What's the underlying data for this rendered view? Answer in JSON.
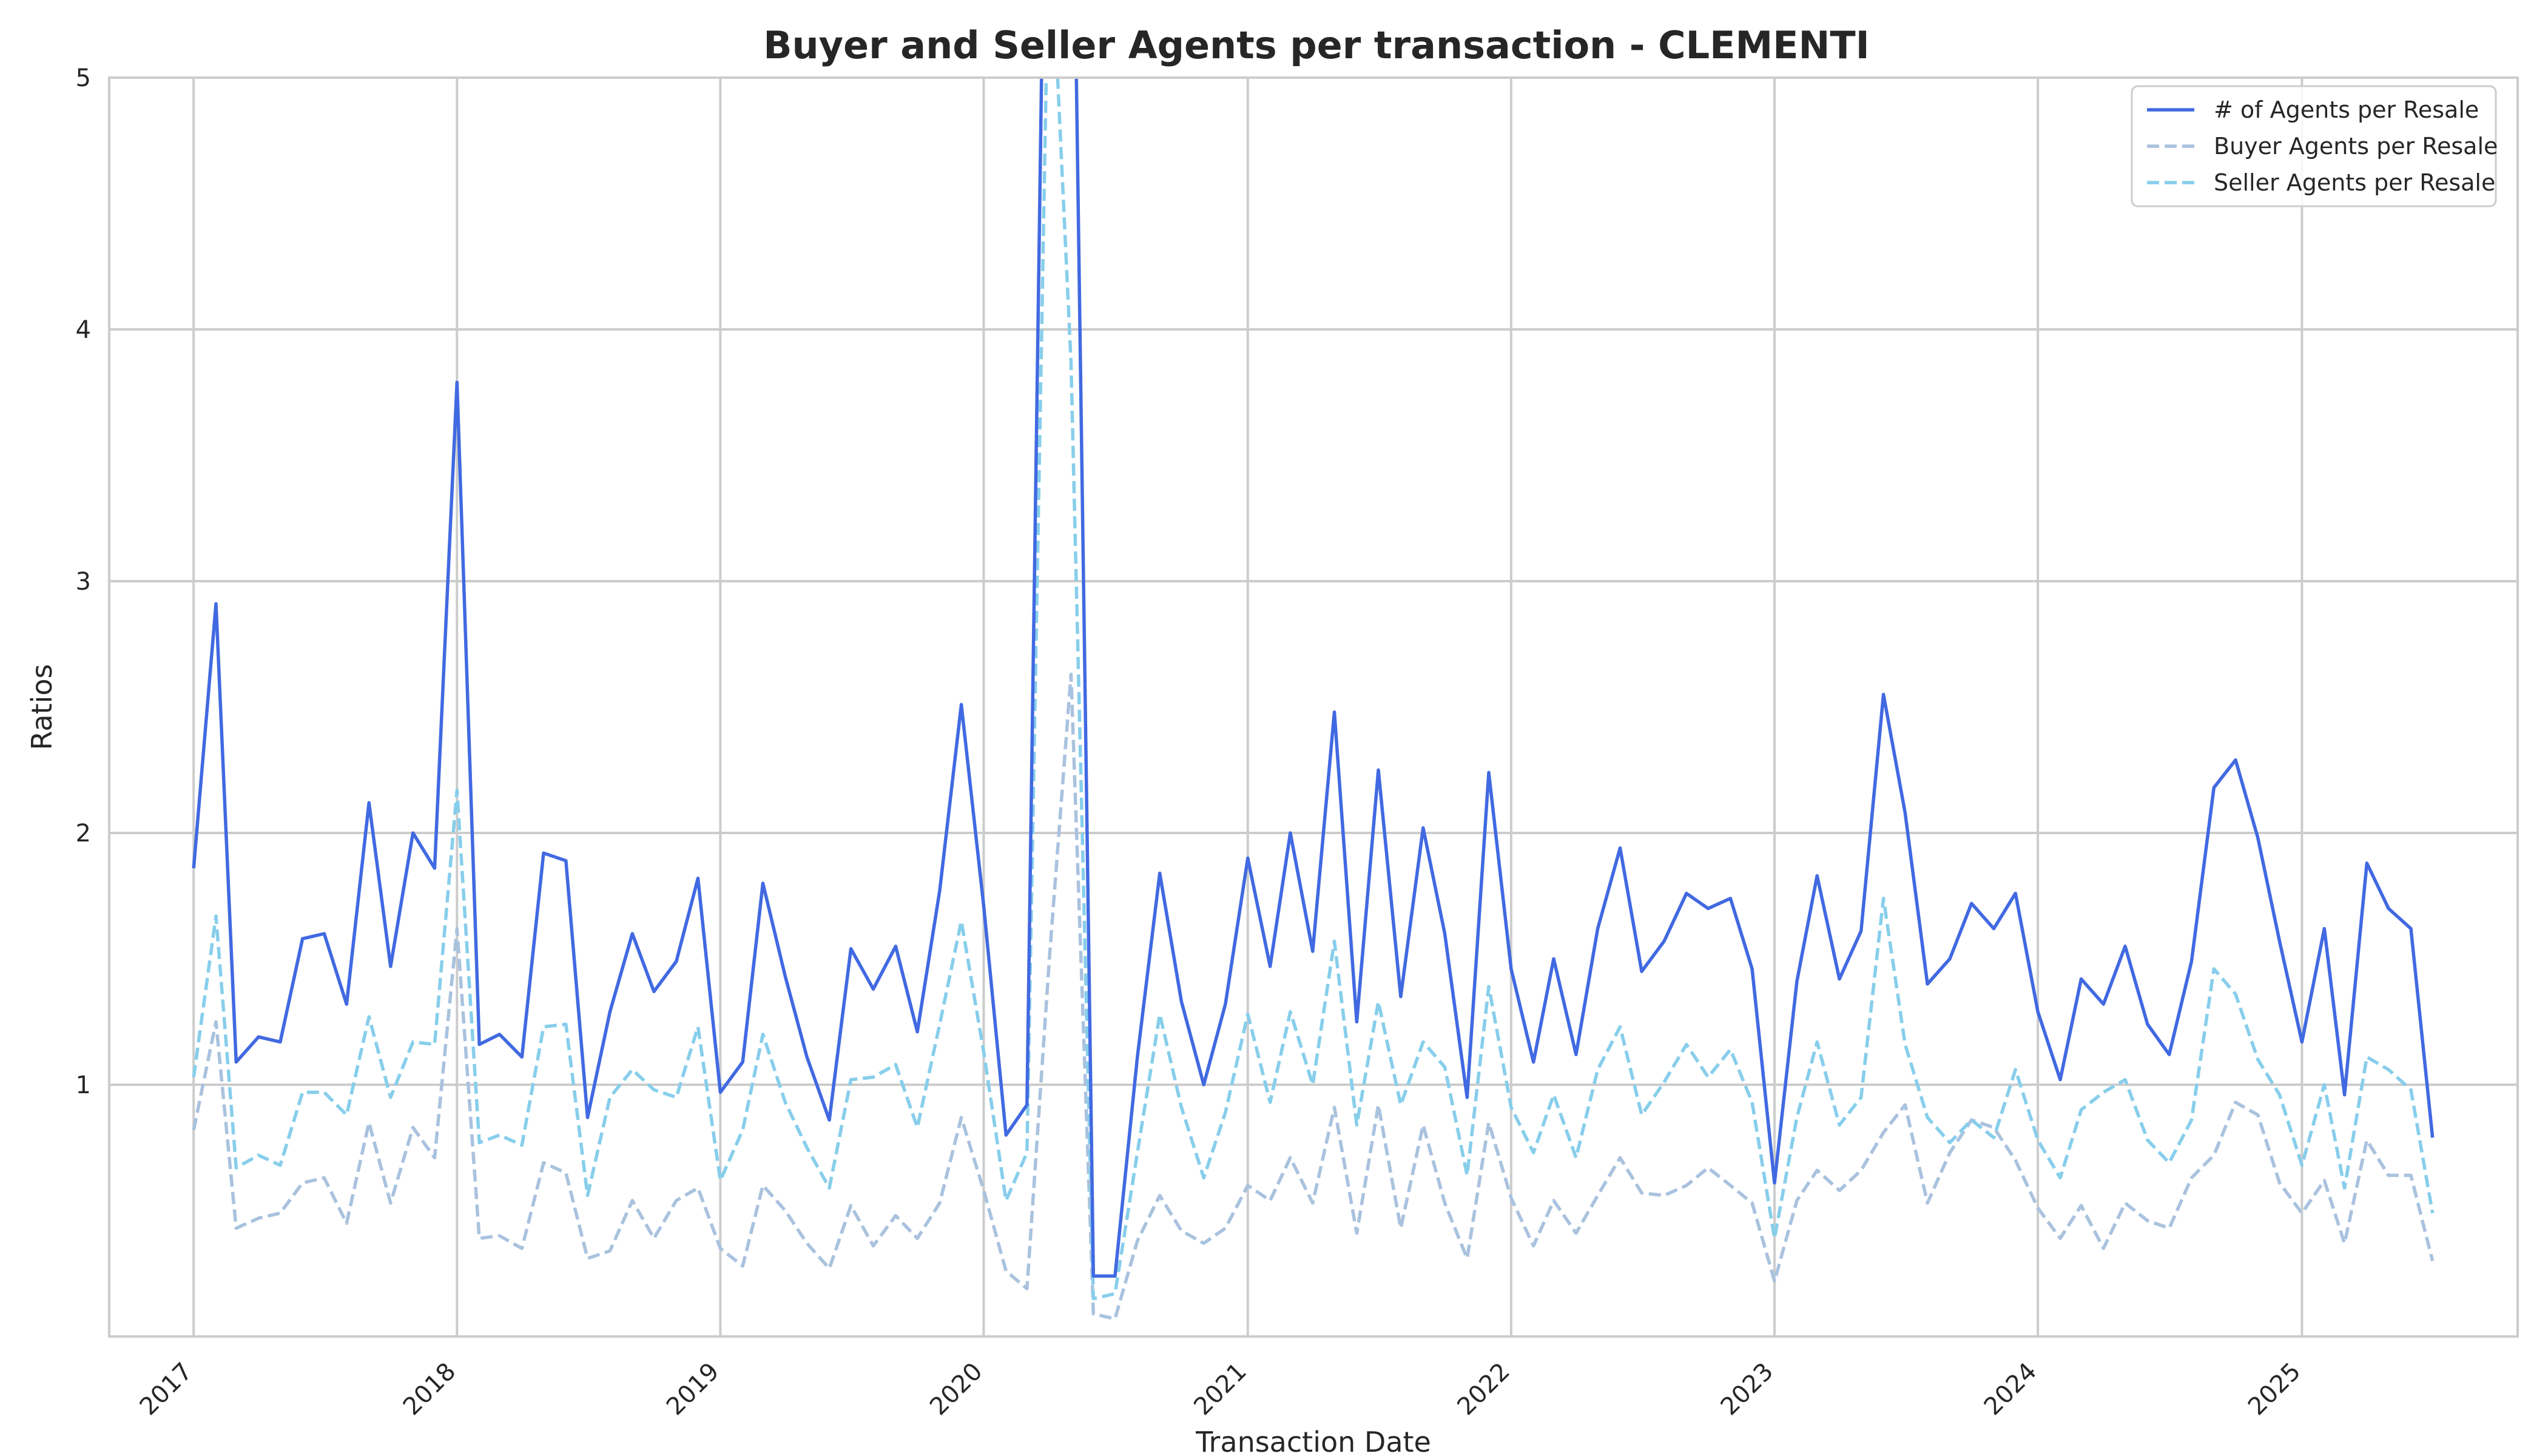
{
  "chart_data": {
    "type": "line",
    "title": "Buyer and Seller Agents per transaction - CLEMENTI",
    "xlabel": "Transaction Date",
    "ylabel": "Ratios",
    "ylim": [
      0,
      5
    ],
    "xlim": [
      "2016-09-06",
      "2025-10-27"
    ],
    "grid": true,
    "legend_position": "top-right",
    "x_ticks": [
      "2017",
      "2018",
      "2019",
      "2020",
      "2021",
      "2022",
      "2023",
      "2024",
      "2025"
    ],
    "y_ticks": [
      "1",
      "2",
      "3",
      "4",
      "5"
    ],
    "x": [
      "2017-01",
      "2017-02",
      "2017-03",
      "2017-04",
      "2017-05",
      "2017-06",
      "2017-07",
      "2017-08",
      "2017-09",
      "2017-10",
      "2017-11",
      "2017-12",
      "2018-01",
      "2018-02",
      "2018-03",
      "2018-04",
      "2018-05",
      "2018-06",
      "2018-07",
      "2018-08",
      "2018-09",
      "2018-10",
      "2018-11",
      "2018-12",
      "2019-01",
      "2019-02",
      "2019-03",
      "2019-04",
      "2019-05",
      "2019-06",
      "2019-07",
      "2019-08",
      "2019-09",
      "2019-10",
      "2019-11",
      "2019-12",
      "2020-01",
      "2020-02",
      "2020-03",
      "2020-04",
      "2020-05",
      "2020-06",
      "2020-07",
      "2020-08",
      "2020-09",
      "2020-10",
      "2020-11",
      "2020-12",
      "2021-01",
      "2021-02",
      "2021-03",
      "2021-04",
      "2021-05",
      "2021-06",
      "2021-07",
      "2021-08",
      "2021-09",
      "2021-10",
      "2021-11",
      "2021-12",
      "2022-01",
      "2022-02",
      "2022-03",
      "2022-04",
      "2022-05",
      "2022-06",
      "2022-07",
      "2022-08",
      "2022-09",
      "2022-10",
      "2022-11",
      "2022-12",
      "2023-01",
      "2023-02",
      "2023-03",
      "2023-04",
      "2023-05",
      "2023-06",
      "2023-07",
      "2023-08",
      "2023-09",
      "2023-10",
      "2023-11",
      "2023-12",
      "2024-01",
      "2024-02",
      "2024-03",
      "2024-04",
      "2024-05",
      "2024-06",
      "2024-07",
      "2024-08",
      "2024-09",
      "2024-10",
      "2024-11",
      "2024-12",
      "2025-01",
      "2025-02",
      "2025-03",
      "2025-04",
      "2025-05",
      "2025-06",
      "2025-07"
    ],
    "series": [
      {
        "name": "# of Agents per Resale",
        "color": "#4169e1",
        "dashed": false,
        "values": [
          1.86,
          2.91,
          1.09,
          1.19,
          1.17,
          1.58,
          1.6,
          1.32,
          2.12,
          1.47,
          2.0,
          1.86,
          3.79,
          1.16,
          1.2,
          1.11,
          1.92,
          1.89,
          0.87,
          1.29,
          1.6,
          1.37,
          1.49,
          1.82,
          0.97,
          1.09,
          1.8,
          1.43,
          1.11,
          0.86,
          1.54,
          1.38,
          1.55,
          1.21,
          1.77,
          2.51,
          1.71,
          0.8,
          0.92,
          7.2,
          6.5,
          0.24,
          0.24,
          1.11,
          1.84,
          1.33,
          1.0,
          1.32,
          1.9,
          1.47,
          2.0,
          1.53,
          2.48,
          1.25,
          2.25,
          1.35,
          2.02,
          1.6,
          0.95,
          2.24,
          1.46,
          1.09,
          1.5,
          1.12,
          1.62,
          1.94,
          1.45,
          1.57,
          1.76,
          1.7,
          1.74,
          1.46,
          0.61,
          1.41,
          1.83,
          1.42,
          1.61,
          2.55,
          2.08,
          1.4,
          1.5,
          1.72,
          1.62,
          1.76,
          1.29,
          1.02,
          1.42,
          1.32,
          1.55,
          1.24,
          1.12,
          1.49,
          2.18,
          2.29,
          1.98,
          1.57,
          1.17,
          1.62,
          0.96,
          1.88,
          1.7,
          1.62,
          0.79
        ]
      },
      {
        "name": "Buyer Agents per Resale",
        "color": "#a9c2de",
        "dashed": true,
        "values": [
          0.82,
          1.25,
          0.43,
          0.47,
          0.49,
          0.61,
          0.63,
          0.45,
          0.85,
          0.53,
          0.83,
          0.71,
          1.62,
          0.39,
          0.4,
          0.35,
          0.69,
          0.65,
          0.31,
          0.34,
          0.54,
          0.39,
          0.54,
          0.59,
          0.35,
          0.28,
          0.6,
          0.5,
          0.37,
          0.27,
          0.52,
          0.36,
          0.48,
          0.39,
          0.53,
          0.87,
          0.58,
          0.26,
          0.19,
          1.5,
          2.63,
          0.09,
          0.07,
          0.38,
          0.56,
          0.42,
          0.37,
          0.43,
          0.6,
          0.54,
          0.71,
          0.53,
          0.91,
          0.41,
          0.92,
          0.43,
          0.84,
          0.53,
          0.31,
          0.85,
          0.55,
          0.36,
          0.54,
          0.41,
          0.56,
          0.71,
          0.57,
          0.56,
          0.6,
          0.67,
          0.6,
          0.53,
          0.22,
          0.54,
          0.66,
          0.58,
          0.66,
          0.81,
          0.92,
          0.53,
          0.73,
          0.86,
          0.83,
          0.7,
          0.51,
          0.39,
          0.52,
          0.35,
          0.53,
          0.46,
          0.43,
          0.63,
          0.72,
          0.93,
          0.88,
          0.61,
          0.49,
          0.62,
          0.37,
          0.78,
          0.64,
          0.64,
          0.3
        ]
      },
      {
        "name": "Seller Agents per Resale",
        "color": "#87ceeb",
        "dashed": true,
        "values": [
          1.03,
          1.67,
          0.67,
          0.72,
          0.68,
          0.97,
          0.97,
          0.88,
          1.27,
          0.95,
          1.17,
          1.16,
          2.17,
          0.77,
          0.8,
          0.76,
          1.23,
          1.24,
          0.56,
          0.95,
          1.06,
          0.98,
          0.95,
          1.23,
          0.62,
          0.82,
          1.2,
          0.93,
          0.75,
          0.59,
          1.02,
          1.03,
          1.08,
          0.83,
          1.24,
          1.65,
          1.13,
          0.54,
          0.73,
          5.7,
          3.87,
          0.15,
          0.17,
          0.73,
          1.28,
          0.91,
          0.63,
          0.89,
          1.28,
          0.93,
          1.29,
          1.0,
          1.57,
          0.84,
          1.33,
          0.92,
          1.17,
          1.07,
          0.64,
          1.39,
          0.91,
          0.73,
          0.96,
          0.71,
          1.06,
          1.23,
          0.88,
          1.01,
          1.16,
          1.03,
          1.14,
          0.93,
          0.39,
          0.87,
          1.17,
          0.84,
          0.95,
          1.74,
          1.16,
          0.87,
          0.77,
          0.86,
          0.79,
          1.06,
          0.78,
          0.63,
          0.9,
          0.97,
          1.02,
          0.78,
          0.69,
          0.86,
          1.46,
          1.36,
          1.1,
          0.96,
          0.68,
          1.0,
          0.59,
          1.11,
          1.06,
          0.98,
          0.49
        ]
      }
    ]
  }
}
